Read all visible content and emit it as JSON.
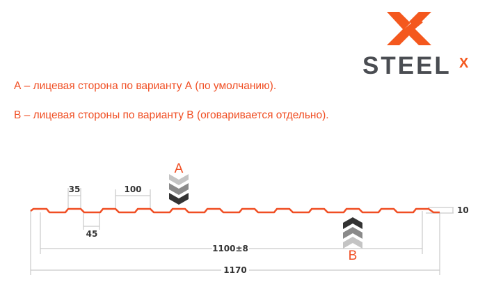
{
  "logo": {
    "text": "STEEL",
    "superscript": "X",
    "icon": "steelx-x-logo-icon",
    "colors": {
      "orange": "#f4581e",
      "gray": "#4a4d52"
    }
  },
  "notes": [
    "А – лицевая сторона по варианту А (по умолчанию).",
    "В – лицевая стороны по варианту В (оговаривается отдельно)."
  ],
  "diagram": {
    "profile_color": "#f04e23",
    "dimensions": {
      "top_width": "35",
      "pitch": "100",
      "bottom_width": "45",
      "height": "10",
      "working_width": "1100±8",
      "total_width": "1170"
    },
    "side_a": {
      "label": "A",
      "icon": "chevrons-down-icon"
    },
    "side_b": {
      "label": "B",
      "icon": "chevrons-up-icon"
    }
  }
}
